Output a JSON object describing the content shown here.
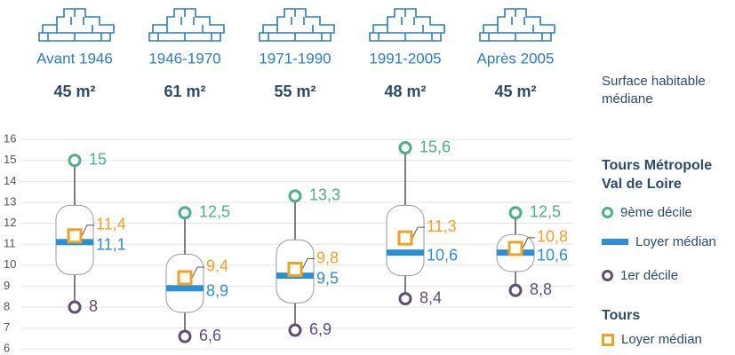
{
  "chart_data": {
    "type": "decile-range",
    "categories": [
      "Avant 1946",
      "1946-1970",
      "1971-1990",
      "1991-2005",
      "Après 2005"
    ],
    "surface": {
      "label": "Surface habitable médiane",
      "values": [
        45,
        61,
        55,
        48,
        45
      ],
      "value_labels": [
        "45 m²",
        "61 m²",
        "55 m²",
        "48 m²",
        "45 m²"
      ]
    },
    "groups": [
      "Tours Métropole Val de Loire",
      "Tours"
    ],
    "series": [
      {
        "name": "9ème décile",
        "group": 0,
        "color": "#4caf86",
        "values": [
          15,
          12.5,
          13.3,
          15.6,
          12.5
        ],
        "value_labels": [
          "15",
          "12,5",
          "13,3",
          "15,6",
          "12,5"
        ]
      },
      {
        "name": "Loyer médian",
        "group": 0,
        "color": "#2b8fd6",
        "values": [
          11.1,
          8.9,
          9.5,
          10.6,
          10.6
        ],
        "value_labels": [
          "11,1",
          "8,9",
          "9,5",
          "10,6",
          "10,6"
        ]
      },
      {
        "name": "1er décile",
        "group": 0,
        "color": "#5e4e72",
        "values": [
          8,
          6.6,
          6.9,
          8.4,
          8.8
        ],
        "value_labels": [
          "8",
          "6,6",
          "6,9",
          "8,4",
          "8,8"
        ]
      },
      {
        "name": "Loyer médian",
        "group": 1,
        "color": "#f0a323",
        "values": [
          11.4,
          9.4,
          9.8,
          11.3,
          10.8
        ],
        "value_labels": [
          "11,4",
          "9,4",
          "9,8",
          "11,3",
          "10,8"
        ]
      }
    ],
    "ylim": [
      5.8,
      16.3
    ],
    "yticks": [
      6,
      7,
      8,
      9,
      10,
      11,
      12,
      13,
      14,
      15,
      16
    ],
    "grid": true
  }
}
